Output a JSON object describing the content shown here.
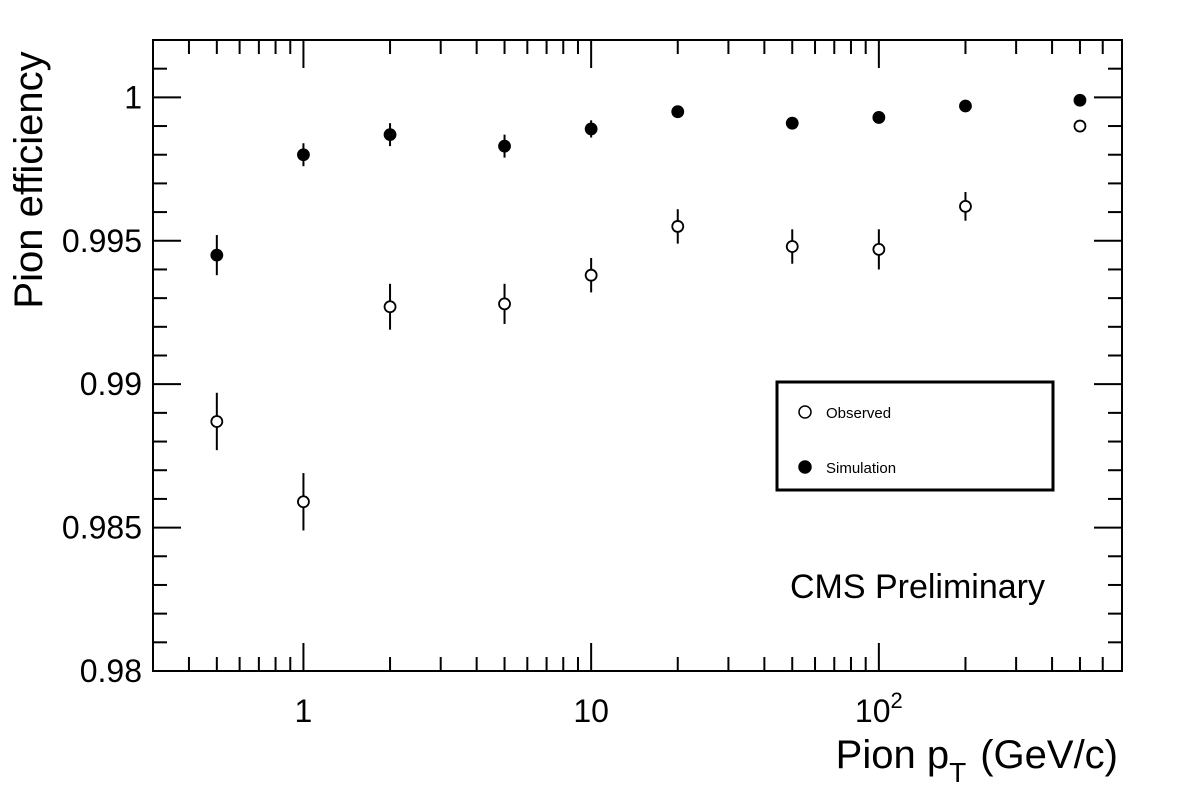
{
  "chart_data": {
    "type": "scatter",
    "title": "",
    "xlabel": "Pion p",
    "xlabel_sub": "T",
    "xlabel_units": "(GeV/c)",
    "ylabel": "Pion efficiency",
    "x_scale": "log",
    "xlim": [
      0.3,
      700
    ],
    "ylim": [
      0.98,
      1.002
    ],
    "y_ticks": [
      0.98,
      0.985,
      0.99,
      0.995,
      1.0
    ],
    "y_tick_labels": [
      "0.98",
      "0.985",
      "0.99",
      "0.995",
      "1"
    ],
    "x_ticks": [
      1,
      10,
      100
    ],
    "x_tick_labels": [
      {
        "base": "1",
        "exp": ""
      },
      {
        "base": "10",
        "exp": ""
      },
      {
        "base": "10",
        "exp": "2"
      }
    ],
    "grid": false,
    "legend": {
      "placement": "center-right",
      "entries": [
        "Observed",
        "Simulation"
      ]
    },
    "annotation": "CMS Preliminary",
    "series": [
      {
        "name": "Observed",
        "marker": "open-circle",
        "x": [
          0.5,
          1,
          2,
          5,
          10,
          20,
          50,
          100,
          200,
          500
        ],
        "y": [
          0.9887,
          0.9859,
          0.9927,
          0.9928,
          0.9938,
          0.9955,
          0.9948,
          0.9947,
          0.9962,
          0.999
        ],
        "yerr": [
          0.001,
          0.001,
          0.0008,
          0.0007,
          0.0006,
          0.0006,
          0.0006,
          0.0007,
          0.0005,
          0.0002
        ]
      },
      {
        "name": "Simulation",
        "marker": "filled-circle",
        "x": [
          0.5,
          1,
          2,
          5,
          10,
          20,
          50,
          100,
          200,
          500
        ],
        "y": [
          0.9945,
          0.998,
          0.9987,
          0.9983,
          0.9989,
          0.9995,
          0.9991,
          0.9993,
          0.9997,
          0.9999
        ],
        "yerr": [
          0.0007,
          0.0004,
          0.0004,
          0.0004,
          0.0003,
          0.0002,
          0.0002,
          0.0002,
          0.0002,
          0.0001
        ]
      }
    ]
  }
}
